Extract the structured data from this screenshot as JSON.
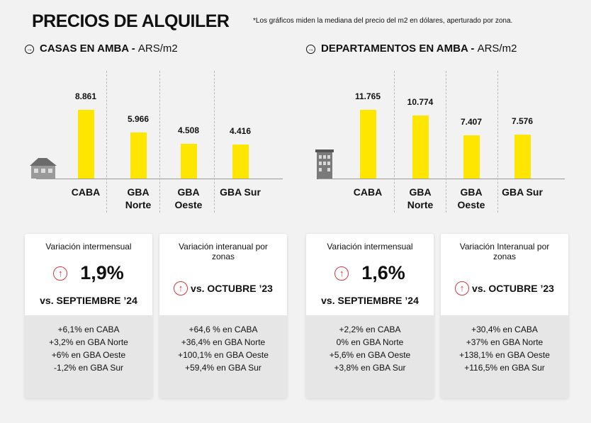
{
  "header": {
    "title": "PRECIOS DE ALQUILER",
    "note": "*Los gráficos miden  la mediana del precio del m2 en dólares, aperturado por zona."
  },
  "chart_data": [
    {
      "type": "bar",
      "title": "CASAS EN AMBA -",
      "unit": "ARS/m2",
      "categories": [
        "CABA",
        "GBA Norte",
        "GBA Oeste",
        "GBA Sur"
      ],
      "values": [
        8861,
        5966,
        4508,
        4416
      ],
      "value_labels": [
        "8.861",
        "5.966",
        "4.508",
        "4.416"
      ],
      "color": "#ffe600"
    },
    {
      "type": "bar",
      "title": "DEPARTAMENTOS EN AMBA -",
      "unit": "ARS/m2",
      "categories": [
        "CABA",
        "GBA Norte",
        "GBA Oeste",
        "GBA Sur"
      ],
      "values": [
        11765,
        10774,
        7407,
        7576
      ],
      "value_labels": [
        "11.765",
        "10.774",
        "7.407",
        "7.576"
      ],
      "color": "#ffe600"
    }
  ],
  "cards": [
    {
      "title": "Variación intermensual",
      "value": "1,9%",
      "comparison": "vs. SEPTIEMBRE ’24",
      "details": [
        "+6,1% en CABA",
        "+3,2% en GBA Norte",
        "+6% en GBA Oeste",
        "-1,2% en GBA Sur"
      ]
    },
    {
      "title": "Variación interanual por zonas",
      "comparison": "vs. OCTUBRE ’23",
      "details": [
        "+64,6 % en CABA",
        "+36,4% en GBA Norte",
        "+100,1% en GBA Oeste",
        "+59,4% en GBA Sur"
      ]
    },
    {
      "title": "Variación intermensual",
      "value": "1,6%",
      "comparison": "vs. SEPTIEMBRE ’24",
      "details": [
        "+2,2% en CABA",
        "0% en GBA Norte",
        "+5,6% en GBA Oeste",
        "+3,8% en GBA Sur"
      ]
    },
    {
      "title": "Variación Interanual por zonas",
      "comparison": "vs. OCTUBRE ’23",
      "details": [
        "+30,4% en CABA",
        "+37% en GBA Norte",
        "+138,1% en GBA Oeste",
        "+116,5% en GBA Sur"
      ]
    }
  ]
}
